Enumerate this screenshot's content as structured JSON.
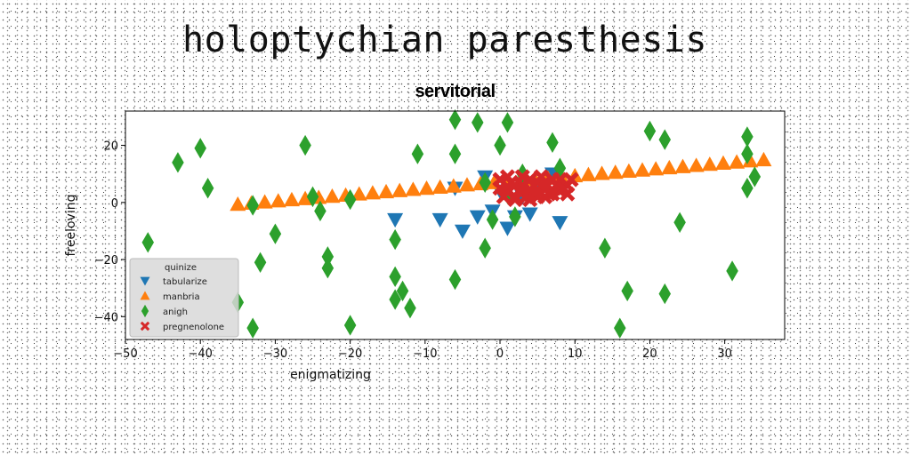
{
  "suptitle": "holoptychian paresthesis",
  "chart_data": {
    "type": "scatter",
    "title": "servitorial",
    "xlabel": "enigmatizing",
    "ylabel": "freeloving",
    "xlim": [
      -50,
      38
    ],
    "ylim": [
      -48,
      32
    ],
    "xticks": [
      -50,
      -40,
      -30,
      -20,
      -10,
      0,
      10,
      20,
      30
    ],
    "yticks": [
      -40,
      -20,
      0,
      20
    ],
    "grid": false,
    "legend": {
      "title": "quinize",
      "placement": "lower-left"
    },
    "series": [
      {
        "name": "tabularize",
        "marker": "triangle-down",
        "color": "#1f77b4",
        "points": [
          [
            -14,
            -6
          ],
          [
            -8,
            -6
          ],
          [
            -5,
            -10
          ],
          [
            -3,
            -5
          ],
          [
            -2,
            9
          ],
          [
            -1,
            -3
          ],
          [
            0,
            4
          ],
          [
            1,
            -9
          ],
          [
            2,
            -5
          ],
          [
            4,
            -4
          ],
          [
            5,
            6
          ],
          [
            7,
            10
          ],
          [
            8,
            -7
          ],
          [
            -6,
            5
          ],
          [
            3,
            2
          ]
        ]
      },
      {
        "name": "manbria",
        "marker": "triangle-up",
        "color": "#ff7f0e",
        "points": [
          [
            -35,
            -0.7
          ],
          [
            -33.2,
            -0.3
          ],
          [
            -31.4,
            0.1
          ],
          [
            -29.6,
            0.5
          ],
          [
            -27.8,
            0.9
          ],
          [
            -26,
            1.3
          ],
          [
            -24.2,
            1.7
          ],
          [
            -22.4,
            2.1
          ],
          [
            -20.6,
            2.5
          ],
          [
            -18.8,
            2.9
          ],
          [
            -17,
            3.3
          ],
          [
            -15.2,
            3.7
          ],
          [
            -13.4,
            4.1
          ],
          [
            -11.6,
            4.5
          ],
          [
            -9.8,
            4.9
          ],
          [
            -8,
            5.3
          ],
          [
            -6.2,
            5.7
          ],
          [
            -4.4,
            6.1
          ],
          [
            -2.6,
            6.5
          ],
          [
            -0.8,
            6.9
          ],
          [
            1,
            7.3
          ],
          [
            2.8,
            7.7
          ],
          [
            4.6,
            8.1
          ],
          [
            6.4,
            8.5
          ],
          [
            8.2,
            8.9
          ],
          [
            10,
            9.3
          ],
          [
            11.8,
            9.7
          ],
          [
            13.6,
            10.1
          ],
          [
            15.4,
            10.5
          ],
          [
            17.2,
            10.9
          ],
          [
            19,
            11.3
          ],
          [
            20.8,
            11.7
          ],
          [
            22.6,
            12.1
          ],
          [
            24.4,
            12.5
          ],
          [
            26.2,
            12.9
          ],
          [
            28,
            13.3
          ],
          [
            29.8,
            13.7
          ],
          [
            31.6,
            14.1
          ],
          [
            33.4,
            14.5
          ],
          [
            35.2,
            14.9
          ]
        ]
      },
      {
        "name": "anigh",
        "marker": "diamond",
        "color": "#2ca02c",
        "points": [
          [
            -47,
            -14
          ],
          [
            -43,
            14
          ],
          [
            -40,
            19
          ],
          [
            -39,
            5
          ],
          [
            -35,
            -35
          ],
          [
            -33,
            -44
          ],
          [
            -33,
            -1
          ],
          [
            -32,
            -21
          ],
          [
            -30,
            -11
          ],
          [
            -26,
            20
          ],
          [
            -25,
            2
          ],
          [
            -24,
            -3
          ],
          [
            -23,
            -19
          ],
          [
            -23,
            -23
          ],
          [
            -20,
            1
          ],
          [
            -20,
            -43
          ],
          [
            -14,
            -13
          ],
          [
            -14,
            -26
          ],
          [
            -14,
            -34
          ],
          [
            -13,
            -31
          ],
          [
            -12,
            -37
          ],
          [
            -11,
            17
          ],
          [
            -6,
            29
          ],
          [
            -6,
            17
          ],
          [
            -6,
            -27
          ],
          [
            -3,
            28
          ],
          [
            -2,
            -16
          ],
          [
            -1,
            -6
          ],
          [
            0,
            20
          ],
          [
            1,
            28
          ],
          [
            2,
            -5
          ],
          [
            3,
            10
          ],
          [
            7,
            21
          ],
          [
            8,
            12
          ],
          [
            14,
            -16
          ],
          [
            16,
            -44
          ],
          [
            17,
            -31
          ],
          [
            20,
            25
          ],
          [
            22,
            22
          ],
          [
            22,
            -32
          ],
          [
            24,
            -7
          ],
          [
            31,
            -24
          ],
          [
            33,
            23
          ],
          [
            33,
            17
          ],
          [
            33,
            5
          ],
          [
            34,
            9
          ],
          [
            -2,
            7
          ],
          [
            1,
            3
          ]
        ]
      },
      {
        "name": "pregnenolone",
        "marker": "x",
        "color": "#d62728",
        "points": [
          [
            0,
            8
          ],
          [
            1,
            4
          ],
          [
            2,
            6
          ],
          [
            3,
            9
          ],
          [
            4,
            3
          ],
          [
            5,
            7
          ],
          [
            6,
            5
          ],
          [
            7,
            8
          ],
          [
            8,
            4
          ],
          [
            9,
            6
          ],
          [
            0,
            5
          ],
          [
            1,
            9
          ],
          [
            2,
            2
          ],
          [
            3,
            6
          ],
          [
            4,
            8
          ],
          [
            5,
            4
          ],
          [
            6,
            7
          ],
          [
            7,
            3
          ],
          [
            8,
            8
          ],
          [
            9,
            3
          ],
          [
            0.5,
            2
          ],
          [
            1.5,
            7
          ],
          [
            2.5,
            4
          ],
          [
            3.5,
            2
          ],
          [
            4.5,
            6
          ],
          [
            5.5,
            9
          ],
          [
            6.5,
            3
          ],
          [
            7.5,
            6
          ],
          [
            8.5,
            5
          ],
          [
            9.5,
            8
          ],
          [
            2,
            1
          ],
          [
            4,
            1
          ],
          [
            6,
            2
          ],
          [
            3,
            4
          ],
          [
            5,
            2
          ]
        ]
      }
    ]
  }
}
